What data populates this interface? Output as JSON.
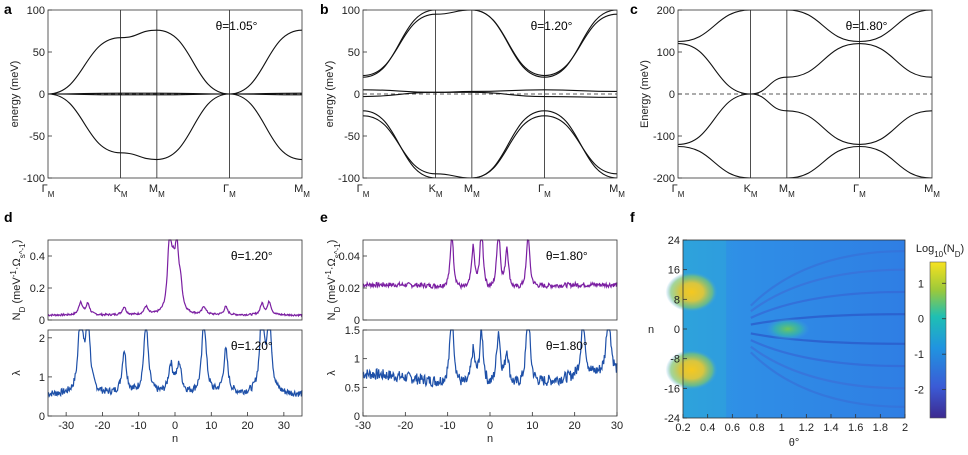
{
  "figure": {
    "panel_letters": [
      "a",
      "b",
      "c",
      "d",
      "e",
      "f"
    ]
  },
  "chart_data": [
    {
      "panel": "a",
      "type": "line",
      "title": "θ=1.05°",
      "xlabel": "",
      "ylabel": "energy (meV)",
      "ylim": [
        -100,
        100
      ],
      "yticks": [
        "100",
        "50",
        "0",
        "-50",
        "-100"
      ],
      "xticks": [
        "Γ_M",
        "K_M",
        "M_M",
        "Γ_M",
        "M_M"
      ],
      "xtick_pos": [
        0,
        1,
        1.5,
        2.5,
        3.5
      ],
      "series": [
        {
          "name": "upper remote",
          "values": [
            [
              0,
              0
            ],
            [
              1,
              67
            ],
            [
              1.5,
              76
            ],
            [
              2.5,
              0
            ],
            [
              3.5,
              76
            ]
          ]
        },
        {
          "name": "upper flat",
          "values": [
            [
              0,
              0
            ],
            [
              1,
              1
            ],
            [
              1.5,
              1
            ],
            [
              2.5,
              0
            ],
            [
              3.5,
              1
            ]
          ]
        },
        {
          "name": "lower flat",
          "values": [
            [
              0,
              0
            ],
            [
              1,
              -1
            ],
            [
              1.5,
              -1
            ],
            [
              2.5,
              0
            ],
            [
              3.5,
              -1
            ]
          ]
        },
        {
          "name": "lower remote",
          "values": [
            [
              0,
              0
            ],
            [
              1,
              -70
            ],
            [
              1.5,
              -78
            ],
            [
              2.5,
              0
            ],
            [
              3.5,
              -78
            ]
          ]
        }
      ]
    },
    {
      "panel": "b",
      "type": "line",
      "title": "θ=1.20°",
      "xlabel": "",
      "ylabel": "energy (meV)",
      "ylim": [
        -100,
        100
      ],
      "yticks": [
        "100",
        "50",
        "0",
        "-50",
        "-100"
      ],
      "xticks": [
        "Γ_M",
        "K_M",
        "M_M",
        "Γ_M",
        "M_M"
      ],
      "xtick_pos": [
        0,
        1,
        1.5,
        2.5,
        3.5
      ],
      "series": [
        {
          "name": "upper remote 1",
          "values": [
            [
              0,
              20
            ],
            [
              1,
              100
            ],
            [
              1.5,
              100
            ],
            [
              2.5,
              20
            ],
            [
              3.5,
              100
            ]
          ]
        },
        {
          "name": "upper remote 2",
          "values": [
            [
              0,
              22
            ],
            [
              1,
              95
            ],
            [
              1.5,
              100
            ],
            [
              2.5,
              22
            ],
            [
              3.5,
              95
            ]
          ]
        },
        {
          "name": "upper flat",
          "values": [
            [
              0,
              5
            ],
            [
              1,
              2
            ],
            [
              1.5,
              3
            ],
            [
              2.5,
              5
            ],
            [
              3.5,
              3
            ]
          ]
        },
        {
          "name": "lower flat",
          "values": [
            [
              0,
              -3
            ],
            [
              1,
              2
            ],
            [
              1.5,
              2
            ],
            [
              2.5,
              -3
            ],
            [
              3.5,
              -4
            ]
          ]
        },
        {
          "name": "lower remote 1",
          "values": [
            [
              0,
              -20
            ],
            [
              1,
              -100
            ],
            [
              1.5,
              -100
            ],
            [
              2.5,
              -20
            ],
            [
              3.5,
              -100
            ]
          ]
        },
        {
          "name": "lower remote 2",
          "values": [
            [
              0,
              -26
            ],
            [
              1,
              -95
            ],
            [
              1.5,
              -100
            ],
            [
              2.5,
              -26
            ],
            [
              3.5,
              -95
            ]
          ]
        }
      ]
    },
    {
      "panel": "c",
      "type": "line",
      "title": "θ=1.80°",
      "xlabel": "",
      "ylabel": "Energy (meV)",
      "ylim": [
        -200,
        200
      ],
      "yticks": [
        "200",
        "100",
        "0",
        "-100",
        "-200"
      ],
      "xticks": [
        "Γ_M",
        "K_M",
        "M_M",
        "Γ_M",
        "M_M"
      ],
      "xtick_pos": [
        0,
        1,
        1.5,
        2.5,
        3.5
      ],
      "series": [
        {
          "name": "upper 1",
          "values": [
            [
              0,
              120
            ],
            [
              1,
              0
            ],
            [
              1.5,
              40
            ],
            [
              2.5,
              120
            ],
            [
              3.5,
              40
            ]
          ]
        },
        {
          "name": "upper 2",
          "values": [
            [
              0,
              125
            ],
            [
              1,
              200
            ],
            [
              1.5,
              200
            ],
            [
              2.5,
              125
            ],
            [
              3.5,
              200
            ]
          ]
        },
        {
          "name": "lower 1",
          "values": [
            [
              0,
              -120
            ],
            [
              1,
              0
            ],
            [
              1.5,
              -40
            ],
            [
              2.5,
              -120
            ],
            [
              3.5,
              -40
            ]
          ]
        },
        {
          "name": "lower 2",
          "values": [
            [
              0,
              -125
            ],
            [
              1,
              -200
            ],
            [
              1.5,
              -200
            ],
            [
              2.5,
              -125
            ],
            [
              3.5,
              -200
            ]
          ]
        }
      ]
    },
    {
      "panel": "d",
      "type": "line",
      "title": "θ=1.20°",
      "title2": "θ=1.20°",
      "xlabel": "n",
      "ylabel": "N_D (meV^-1·Ω_s^-1)",
      "ylabel2": "λ",
      "xlim": [
        -35,
        35
      ],
      "ylim": [
        0,
        0.5
      ],
      "ylim2": [
        0,
        2.2
      ],
      "xticks": [
        "-30",
        "-20",
        "-10",
        "0",
        "10",
        "20",
        "30"
      ],
      "yticks": [
        "0",
        "0.2",
        "0.4"
      ],
      "yticks2": [
        "0",
        "1",
        "2"
      ],
      "peaks_nd": [
        [
          -26,
          0.08
        ],
        [
          -24,
          0.07
        ],
        [
          -14,
          0.05
        ],
        [
          -8,
          0.05
        ],
        [
          -1.5,
          0.46
        ],
        [
          -0.5,
          0.2
        ],
        [
          0.5,
          0.37
        ],
        [
          1.5,
          0.15
        ],
        [
          8,
          0.05
        ],
        [
          14,
          0.05
        ],
        [
          24,
          0.07
        ],
        [
          26,
          0.08
        ]
      ],
      "peaks_lambda": [
        [
          -26,
          2.15
        ],
        [
          -24,
          1.9
        ],
        [
          -14,
          1.1
        ],
        [
          -8,
          1.85
        ],
        [
          -1.2,
          0.7
        ],
        [
          0,
          0.15
        ],
        [
          1.2,
          0.7
        ],
        [
          8,
          1.9
        ],
        [
          14,
          1.1
        ],
        [
          24,
          2.2
        ],
        [
          26,
          1.9
        ]
      ]
    },
    {
      "panel": "e",
      "type": "line",
      "title": "θ=1.80°",
      "title2": "θ=1.80°",
      "xlabel": "n",
      "ylabel": "N_D (meV^-1·Ω_s^-1)",
      "ylabel2": "λ",
      "xlim": [
        -30,
        30
      ],
      "ylim": [
        0,
        0.05
      ],
      "ylim2": [
        0,
        1.5
      ],
      "xticks": [
        "-30",
        "-20",
        "-10",
        "0",
        "10",
        "20",
        "30"
      ],
      "yticks": [
        "0",
        "0.02",
        "0.04"
      ],
      "yticks2": [
        "0",
        "0.5",
        "1",
        "1.5"
      ],
      "peaks_nd": [
        [
          -9,
          0.034
        ],
        [
          -4,
          0.026
        ],
        [
          -2,
          0.041
        ],
        [
          2,
          0.041
        ],
        [
          4,
          0.026
        ],
        [
          9,
          0.034
        ]
      ],
      "peaks_lambda": [
        [
          -9,
          1.3
        ],
        [
          -4,
          0.6
        ],
        [
          -2,
          0.95
        ],
        [
          2,
          0.95
        ],
        [
          4,
          0.6
        ],
        [
          9,
          1.3
        ],
        [
          22,
          1.05
        ],
        [
          28,
          1.2
        ]
      ]
    },
    {
      "panel": "f",
      "type": "heatmap",
      "xlabel": "θ°",
      "ylabel": "n",
      "xlim": [
        0.2,
        2.0
      ],
      "ylim": [
        -24,
        24
      ],
      "xticks": [
        "0.2",
        "0.4",
        "0.6",
        "0.8",
        "1",
        "1.2",
        "1.4",
        "1.6",
        "1.8",
        "2"
      ],
      "yticks": [
        "24",
        "16",
        "8",
        "0",
        "-8",
        "-16",
        "-24"
      ],
      "colorbar": {
        "label": "Log10(N_D)",
        "ticks": [
          "1",
          "0",
          "-1",
          "-2"
        ],
        "range": [
          -2.8,
          1.6
        ]
      },
      "hotspots": [
        {
          "theta": 0.27,
          "n": 10,
          "value": 1.5
        },
        {
          "theta": 0.27,
          "n": -11,
          "value": 1.5
        },
        {
          "theta": 1.05,
          "n": 0,
          "value": 0.3
        }
      ]
    }
  ]
}
